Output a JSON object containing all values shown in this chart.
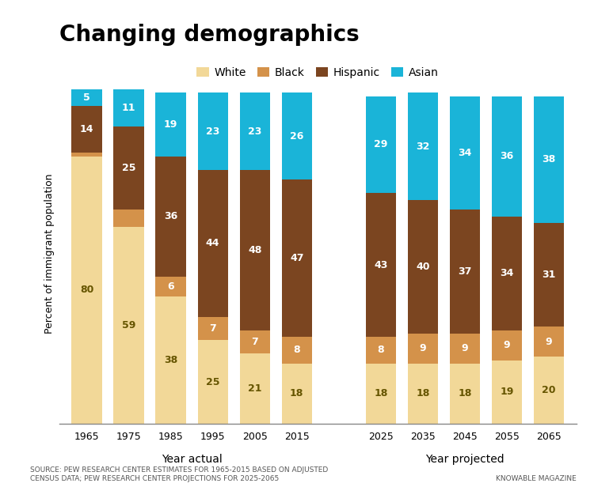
{
  "title": "Changing demographics",
  "years": [
    "1965",
    "1975",
    "1985",
    "1995",
    "2005",
    "2015",
    "2025",
    "2035",
    "2045",
    "2055",
    "2065"
  ],
  "white": [
    80,
    59,
    38,
    25,
    21,
    18,
    18,
    18,
    18,
    19,
    20
  ],
  "black": [
    1,
    5,
    6,
    7,
    7,
    8,
    8,
    9,
    9,
    9,
    9
  ],
  "hispanic": [
    14,
    25,
    36,
    44,
    48,
    47,
    43,
    40,
    37,
    34,
    31
  ],
  "asian": [
    5,
    11,
    19,
    23,
    23,
    26,
    29,
    32,
    34,
    36,
    38
  ],
  "white_labels": [
    "80",
    "59",
    "38",
    "25",
    "21",
    "18",
    "18",
    "18",
    "18",
    "19",
    "20"
  ],
  "black_labels": [
    "",
    "",
    "6",
    "7",
    "7",
    "8",
    "8",
    "9",
    "9",
    "9",
    "9"
  ],
  "hispanic_labels": [
    "14",
    "25",
    "36",
    "44",
    "48",
    "47",
    "43",
    "40",
    "37",
    "34",
    "31"
  ],
  "asian_labels": [
    "5",
    "11",
    "19",
    "23",
    "23",
    "26",
    "29",
    "32",
    "34",
    "36",
    "38"
  ],
  "colors": {
    "white": "#f2d898",
    "black": "#d4924a",
    "hispanic": "#7b4520",
    "asian": "#1ab4d8"
  },
  "ylabel": "Percent of immigrant population",
  "xlabel_actual": "Year actual",
  "xlabel_projected": "Year projected",
  "legend_labels": [
    "White",
    "Black",
    "Hispanic",
    "Asian"
  ],
  "source_text": "SOURCE: PEW RESEARCH CENTER ESTIMATES FOR 1965-2015 BASED ON ADJUSTED\nCENSUS DATA; PEW RESEARCH CENTER PROJECTIONS FOR 2025-2065",
  "credit_text": "KNOWABLE MAGAZINE",
  "bar_width": 0.72,
  "ylim": [
    0,
    102
  ],
  "background_color": "#ffffff",
  "title_fontsize": 20,
  "bar_label_fontsize": 9
}
